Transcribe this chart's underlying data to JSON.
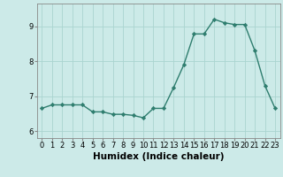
{
  "xlabel": "Humidex (Indice chaleur)",
  "x_values": [
    0,
    1,
    2,
    3,
    4,
    5,
    6,
    7,
    8,
    9,
    10,
    11,
    12,
    13,
    14,
    15,
    16,
    17,
    18,
    19,
    20,
    21,
    22,
    23
  ],
  "y_values": [
    6.65,
    6.75,
    6.75,
    6.75,
    6.75,
    6.55,
    6.55,
    6.48,
    6.48,
    6.45,
    6.38,
    6.65,
    6.65,
    7.25,
    7.9,
    8.78,
    8.78,
    9.2,
    9.1,
    9.05,
    9.05,
    8.3,
    7.3,
    6.65
  ],
  "line_color": "#2e7d6e",
  "marker": "D",
  "marker_size": 2.2,
  "line_width": 1.0,
  "bg_color": "#cceae8",
  "grid_color": "#aad4d0",
  "ylim": [
    5.8,
    9.65
  ],
  "yticks": [
    6,
    7,
    8,
    9
  ],
  "xlim": [
    -0.5,
    23.5
  ],
  "tick_fontsize": 6,
  "xlabel_fontsize": 7.5
}
